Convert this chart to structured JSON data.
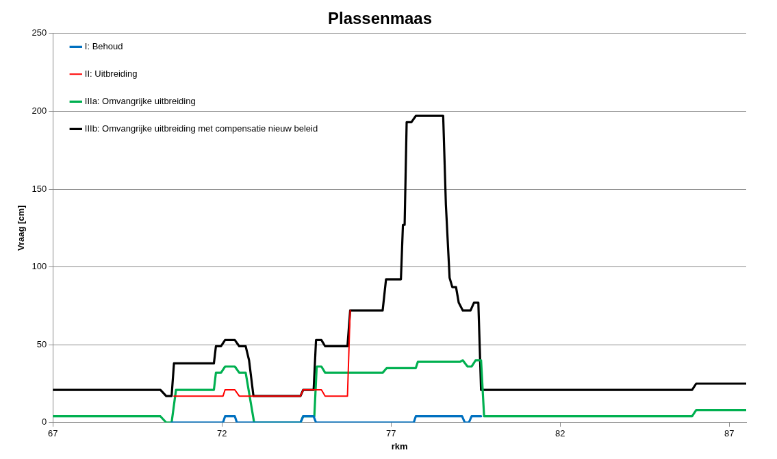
{
  "chart_data": {
    "type": "line",
    "title": "Plassenmaas",
    "xlabel": "rkm",
    "ylabel": "Vraag [cm]",
    "xlim": [
      67,
      87.5
    ],
    "xticks": [
      67,
      72,
      77,
      82,
      87
    ],
    "ylim": [
      0,
      250
    ],
    "yticks": [
      0,
      50,
      100,
      150,
      200,
      250
    ],
    "grid": "y",
    "legend": "top left",
    "marker": "none",
    "line_style": "solid",
    "series": [
      {
        "name": "I: Behoud",
        "color": "#0070c0",
        "x": [
          70.51,
          72.03,
          72.09,
          72.38,
          72.44,
          74.32,
          74.4,
          74.71,
          74.78,
          77.67,
          77.73,
          79.1,
          79.18,
          79.3,
          79.38,
          79.66
        ],
        "values": [
          0,
          0,
          4,
          4,
          0,
          0,
          4,
          4,
          0,
          0,
          4,
          4,
          0,
          0,
          4,
          4
        ]
      },
      {
        "name": "II: Uitbreiding",
        "color": "#ff0000",
        "x": [
          70.58,
          72.03,
          72.09,
          72.38,
          72.51,
          72.93,
          74.32,
          74.4,
          74.94,
          75.05,
          75.71,
          75.79
        ],
        "values": [
          17,
          17,
          21,
          21,
          17,
          17,
          17,
          21,
          21,
          17,
          17,
          72
        ]
      },
      {
        "name": "IIIa: Omvangrijke uitbreiding",
        "color": "#00b050",
        "x": [
          67,
          70.18,
          70.35,
          70.51,
          70.64,
          71.76,
          71.82,
          71.97,
          72.09,
          72.38,
          72.51,
          72.7,
          72.95,
          74.32,
          74.4,
          74.73,
          74.8,
          74.94,
          75.05,
          76.75,
          76.87,
          77.73,
          77.79,
          79.04,
          79.12,
          79.26,
          79.38,
          79.5,
          79.66,
          79.75,
          85.9,
          86.02,
          87.5
        ],
        "values": [
          4,
          4,
          0,
          0,
          21,
          21,
          32,
          32,
          36,
          36,
          32,
          32,
          0,
          0,
          4,
          4,
          36,
          36,
          32,
          32,
          35,
          35,
          39,
          39,
          40,
          36,
          36,
          40,
          40,
          4,
          4,
          8,
          8
        ]
      },
      {
        "name": "IIIb: Omvangrijke uitbreiding met compensatie nieuw beleid",
        "color": "#000000",
        "x": [
          67,
          70.18,
          70.35,
          70.51,
          70.58,
          71.76,
          71.82,
          71.97,
          72.09,
          72.38,
          72.51,
          72.7,
          72.8,
          72.93,
          74.32,
          74.4,
          74.71,
          74.78,
          74.94,
          75.05,
          75.71,
          75.79,
          76.75,
          76.85,
          77.29,
          77.35,
          77.4,
          77.46,
          77.6,
          77.73,
          78.54,
          78.62,
          78.73,
          78.81,
          78.92,
          79.0,
          79.12,
          79.35,
          79.45,
          79.58,
          79.66,
          85.9,
          86.02,
          87.5
        ],
        "values": [
          21,
          21,
          17,
          17,
          38,
          38,
          49,
          49,
          53,
          53,
          49,
          49,
          40,
          17,
          17,
          21,
          21,
          53,
          53,
          49,
          49,
          72,
          72,
          92,
          92,
          127,
          127,
          193,
          193,
          197,
          197,
          140,
          93,
          87,
          87,
          77,
          72,
          72,
          77,
          77,
          21,
          21,
          25,
          25
        ]
      }
    ]
  }
}
